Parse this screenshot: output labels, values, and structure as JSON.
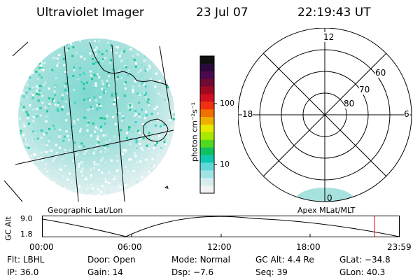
{
  "header": {
    "instrument": "Ultraviolet Imager",
    "date": "23 Jul 07",
    "time": "22:19:43 UT"
  },
  "panels": {
    "geographic_label": "Geographic Lat/Lon",
    "apex_label": "Apex MLat/MLT"
  },
  "colorbar": {
    "unit_label": "photon cm⁻²s⁻¹",
    "ticks": [
      "100",
      "10"
    ],
    "colors": [
      "#101010",
      "#2a0a3a",
      "#4a0a50",
      "#700a30",
      "#a00a20",
      "#d01020",
      "#f03010",
      "#f07000",
      "#f0b000",
      "#e8e800",
      "#a8e800",
      "#50d820",
      "#10c060",
      "#10c8b0",
      "#60d8d8",
      "#a0e4e4",
      "#d4eeee",
      "#f0f4f4"
    ]
  },
  "polar_plot": {
    "mlt_labels": [
      "12",
      "18",
      "6",
      "0"
    ],
    "lat_labels": [
      "60",
      "70",
      "80"
    ]
  },
  "altitude_plot": {
    "ylabel": "GC Alt",
    "y_ticks": [
      "9.0",
      "1.8"
    ],
    "x_ticks": [
      "00:00",
      "06:00",
      "12:00",
      "18:00",
      "23:59"
    ],
    "marker_color": "#dd0000"
  },
  "status": {
    "row1": [
      {
        "label": "Flt:",
        "value": "LBHL"
      },
      {
        "label": "Door:",
        "value": "Open"
      },
      {
        "label": "Mode:",
        "value": "Normal"
      },
      {
        "label": "GC Alt:",
        "value": "4.4 Re"
      },
      {
        "label": "GLat:",
        "value": "−34.8"
      }
    ],
    "row2": [
      {
        "label": "IP:",
        "value": "36.0"
      },
      {
        "label": "Gain:",
        "value": "14"
      },
      {
        "label": "Dsp:",
        "value": "−7.6"
      },
      {
        "label": "Seq:",
        "value": "39"
      },
      {
        "label": "GLon:",
        "value": "40.3"
      }
    ]
  }
}
